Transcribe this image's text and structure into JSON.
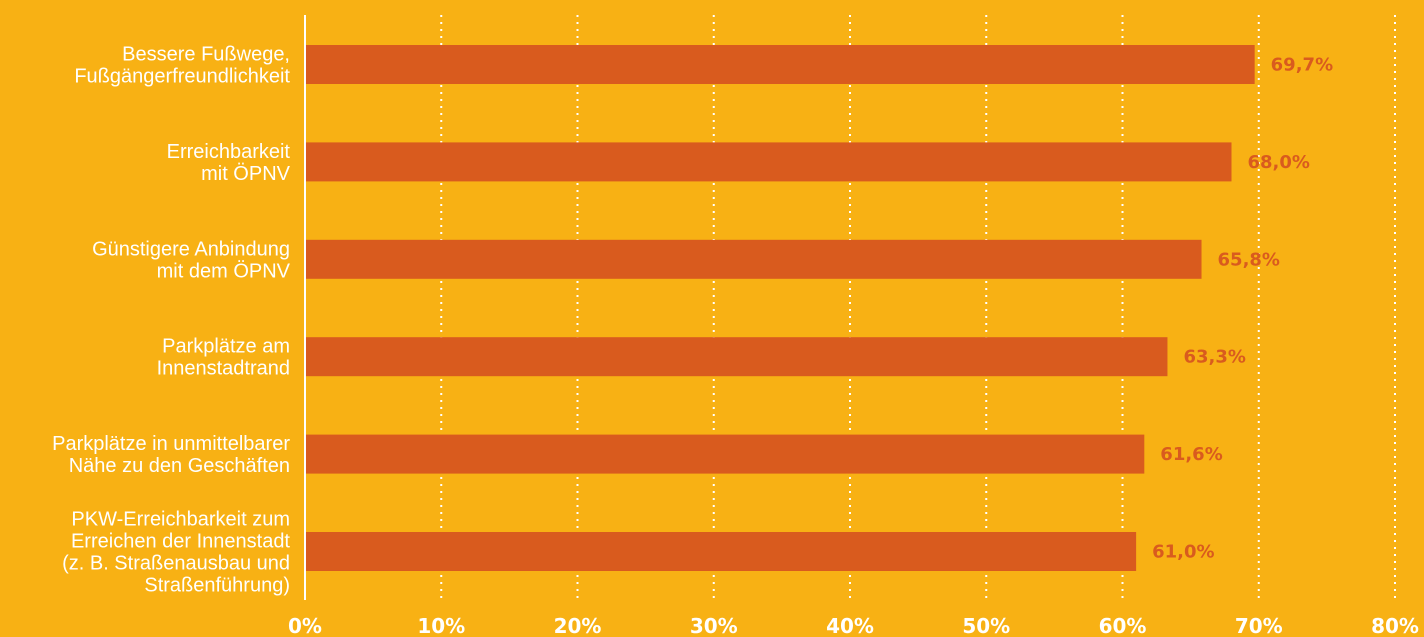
{
  "chart_data": {
    "type": "bar",
    "orientation": "horizontal",
    "categories": [
      [
        "Bessere Fußwege,",
        "Fußgängerfreundlichkeit"
      ],
      [
        "Erreichbarkeit",
        "mit ÖPNV"
      ],
      [
        "Günstigere Anbindung",
        "mit dem ÖPNV"
      ],
      [
        "Parkplätze am",
        "Innenstadtrand"
      ],
      [
        "Parkplätze in unmittelbarer",
        "Nähe zu den Geschäften"
      ],
      [
        "PKW-Erreichbarkeit zum",
        "Erreichen der Innenstadt",
        "(z. B. Straßenausbau und",
        "Straßenführung)"
      ]
    ],
    "values": [
      69.7,
      68.0,
      65.8,
      63.3,
      61.6,
      61.0
    ],
    "value_labels": [
      "69,7%",
      "68,0%",
      "65,8%",
      "63,3%",
      "61,6%",
      "61,0%"
    ],
    "xlim": [
      0,
      80
    ],
    "x_ticks": [
      0,
      10,
      20,
      30,
      40,
      50,
      60,
      70,
      80
    ],
    "x_tick_labels": [
      "0%",
      "10%",
      "20%",
      "30%",
      "40%",
      "50%",
      "60%",
      "70%",
      "80%"
    ],
    "grid": "vertical-dotted",
    "legend": "none",
    "colors": {
      "background": "#F8B114",
      "bar": "#D95B1E",
      "value_label": "#D95B1E",
      "axis": "#FFFFFF",
      "text": "#FFFFFF"
    }
  }
}
